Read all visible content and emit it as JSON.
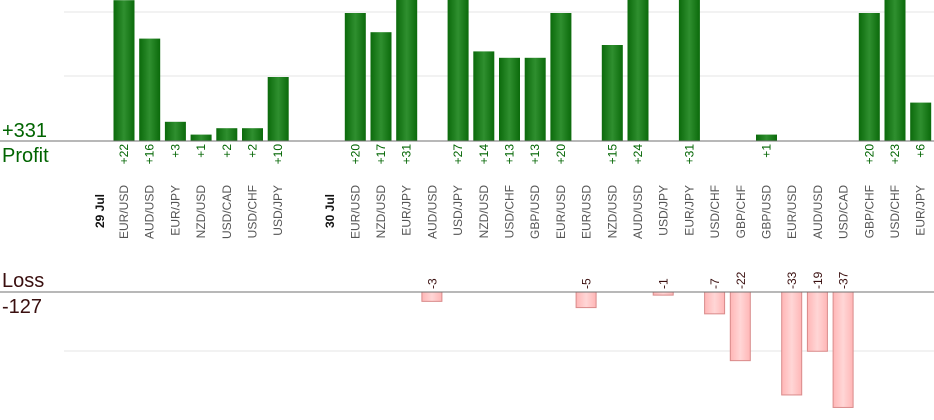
{
  "labels": {
    "profit_total": "+331",
    "profit_title": "Profit",
    "loss_title": "Loss",
    "loss_total": "-127"
  },
  "colors": {
    "profit_bar": "#0b6a0b",
    "profit_bar_light": "#2f8f2f",
    "loss_bar": "#ffb6b6",
    "loss_bar_border": "#d98a8a",
    "profit_text": "#006400",
    "loss_text": "#3a0f0f",
    "axis": "#707070",
    "grid": "#e6e6e6",
    "tick_text": "#555555",
    "date_text": "#111111"
  },
  "chart_data": {
    "type": "bar",
    "title": "",
    "grid": true,
    "days": [
      {
        "date": "29 Jul",
        "start_index": 0
      },
      {
        "date": "30 Jul",
        "start_index": 7
      }
    ],
    "categories": [
      "EUR/USD",
      "AUD/USD",
      "EUR/JPY",
      "NZD/USD",
      "USD/CAD",
      "USD/CHF",
      "USD/JPY",
      "EUR/USD",
      "NZD/USD",
      "EUR/JPY",
      "AUD/USD",
      "USD/JPY",
      "NZD/USD",
      "USD/CHF",
      "GBP/USD",
      "EUR/USD",
      "EUR/USD",
      "NZD/USD",
      "AUD/USD",
      "USD/JPY",
      "EUR/JPY",
      "USD/CHF",
      "GBP/CHF",
      "GBP/USD",
      "EUR/USD",
      "AUD/USD",
      "USD/CAD",
      "GBP/CHF",
      "USD/CHF",
      "EUR/JPY"
    ],
    "values": [
      22,
      16,
      3,
      1,
      2,
      2,
      10,
      20,
      17,
      31,
      -3,
      27,
      14,
      13,
      13,
      20,
      -5,
      15,
      24,
      -1,
      31,
      -7,
      -22,
      1,
      -33,
      -19,
      -37,
      20,
      23,
      6
    ],
    "value_labels": [
      "+22",
      "+16",
      "+3",
      "+1",
      "+2",
      "+2",
      "+10",
      "+20",
      "+17",
      "+31",
      "-3",
      "+27",
      "+14",
      "+13",
      "+13",
      "+20",
      "-5",
      "+15",
      "+24",
      "-1",
      "+31",
      "-7",
      "-22",
      "+1",
      "-33",
      "-19",
      "-37",
      "+20",
      "+23",
      "+6"
    ],
    "profit_ylim": [
      0,
      22
    ],
    "loss_ylim": [
      0,
      20
    ]
  }
}
